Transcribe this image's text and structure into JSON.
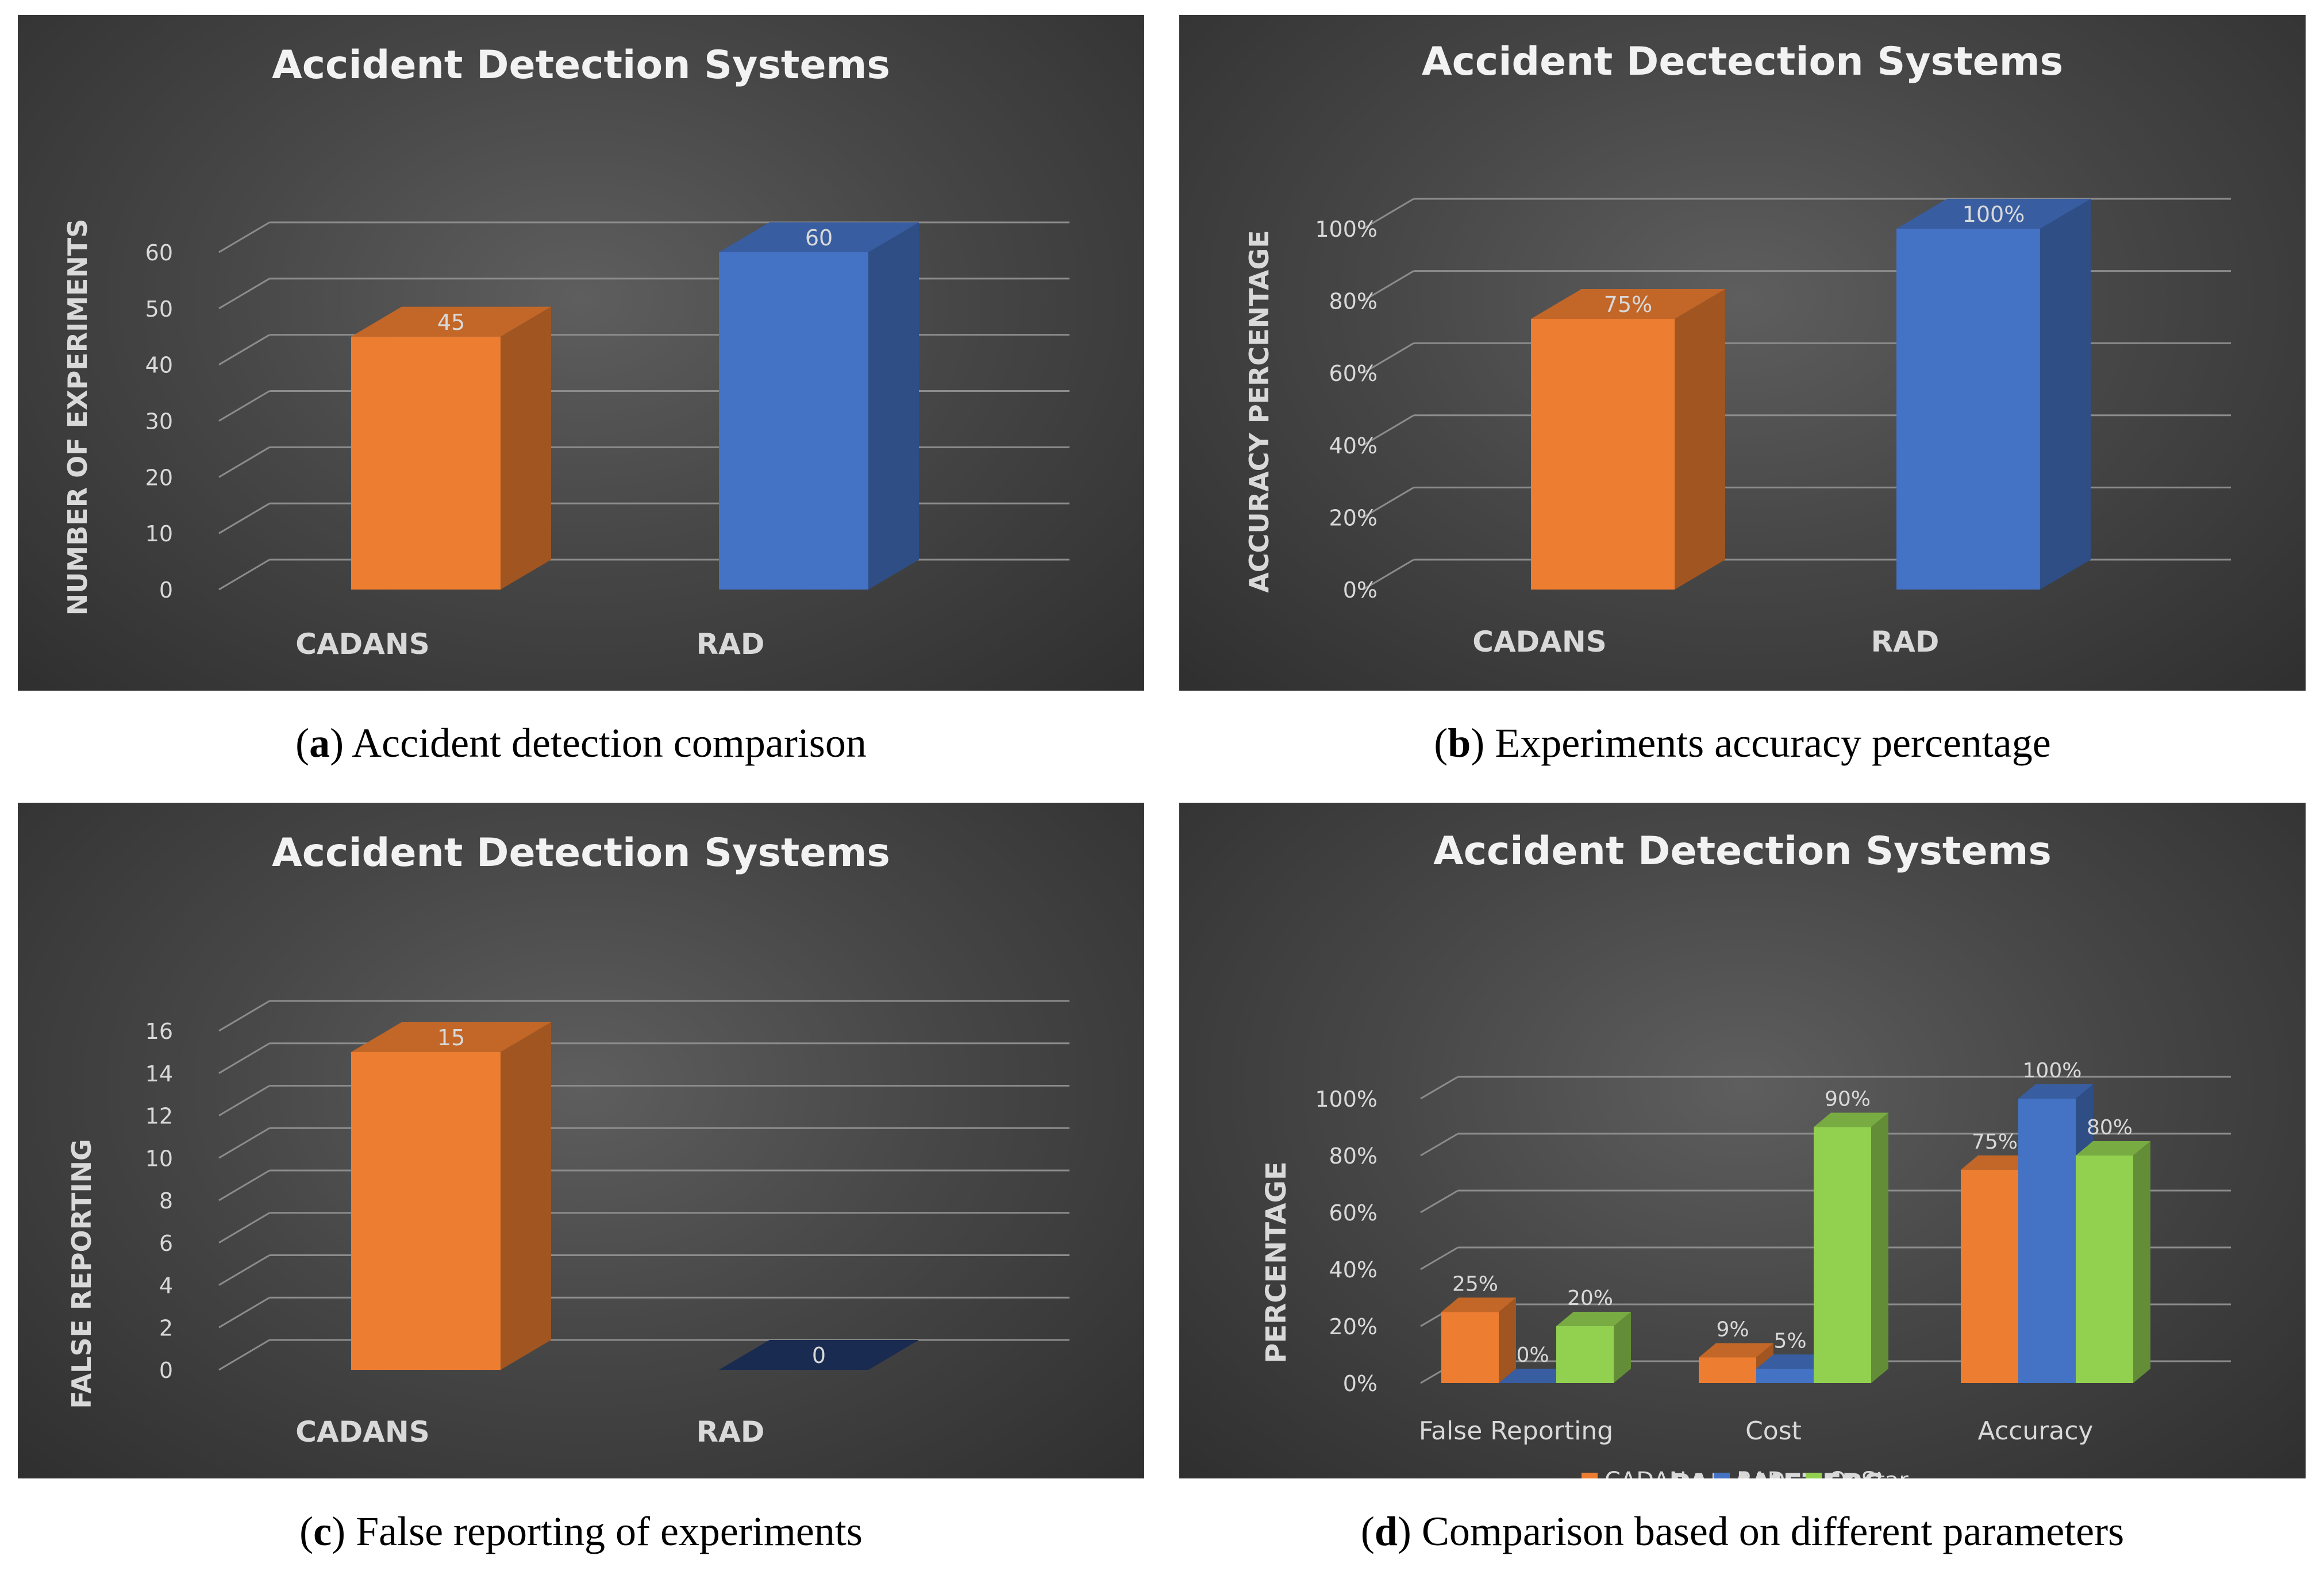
{
  "colors": {
    "cadans": "#ed7d31",
    "rad": "#4472c4",
    "onstar": "#92d050",
    "grid": "#8c8c8c",
    "text_light": "#d9d9d9",
    "title": "#f2f2f2"
  },
  "captions": [
    {
      "letter": "a",
      "text": " Accident detection comparison"
    },
    {
      "letter": "b",
      "text": " Experiments accuracy percentage"
    },
    {
      "letter": "c",
      "text": " False reporting of experiments"
    },
    {
      "letter": "d",
      "text": " Comparison based on different parameters"
    }
  ],
  "chart_data": [
    {
      "type": "bar",
      "title": "Accident Detection Systems",
      "xlabel": "",
      "ylabel": "NUMBER OF EXPERIMENTS",
      "categories": [
        "CADANS",
        "RAD"
      ],
      "values": [
        45,
        60
      ],
      "data_labels": [
        "45",
        "60"
      ],
      "bar_colors": [
        "#ed7d31",
        "#4472c4"
      ],
      "ylim": [
        0,
        60
      ],
      "yticks": [
        0,
        10,
        20,
        30,
        40,
        50,
        60
      ],
      "ytick_labels": [
        "0",
        "10",
        "20",
        "30",
        "40",
        "50",
        "60"
      ],
      "grid": true,
      "legend": null
    },
    {
      "type": "bar",
      "title": "Accident Dectection Systems",
      "xlabel": "",
      "ylabel": "ACCURACY PERCENTAGE",
      "categories": [
        "CADANS",
        "RAD"
      ],
      "values": [
        75,
        100
      ],
      "data_labels": [
        "75%",
        "100%"
      ],
      "bar_colors": [
        "#ed7d31",
        "#4472c4"
      ],
      "ylim": [
        0,
        100
      ],
      "yticks": [
        0,
        20,
        40,
        60,
        80,
        100
      ],
      "ytick_labels": [
        "0%",
        "20%",
        "40%",
        "60%",
        "80%",
        "100%"
      ],
      "grid": true,
      "legend": null
    },
    {
      "type": "bar",
      "title": "Accident Detection Systems",
      "xlabel": "",
      "ylabel": "FALSE REPORTING",
      "categories": [
        "CADANS",
        "RAD"
      ],
      "values": [
        15,
        0
      ],
      "data_labels": [
        "15",
        "0"
      ],
      "bar_colors": [
        "#ed7d31",
        "#4472c4"
      ],
      "ylim": [
        0,
        16
      ],
      "yticks": [
        0,
        2,
        4,
        6,
        8,
        10,
        12,
        14,
        16
      ],
      "ytick_labels": [
        "0",
        "2",
        "4",
        "6",
        "8",
        "10",
        "12",
        "14",
        "16"
      ],
      "grid": true,
      "legend": null
    },
    {
      "type": "bar",
      "title": "Accident Detection Systems",
      "xlabel": "PARAMETERS",
      "ylabel": "PERCENTAGE",
      "categories": [
        "False Reporting",
        "Cost",
        "Accuracy"
      ],
      "series": [
        {
          "name": "CADAN",
          "color": "#ed7d31",
          "values": [
            25,
            9,
            75
          ],
          "labels": [
            "25%",
            "9%",
            "75%"
          ]
        },
        {
          "name": "RAD",
          "color": "#4472c4",
          "values": [
            0,
            5,
            100
          ],
          "labels": [
            "0%",
            "5%",
            "100%"
          ]
        },
        {
          "name": "OnStar",
          "color": "#92d050",
          "values": [
            20,
            90,
            80
          ],
          "labels": [
            "20%",
            "90%",
            "80%"
          ]
        }
      ],
      "ylim": [
        0,
        100
      ],
      "yticks": [
        0,
        20,
        40,
        60,
        80,
        100
      ],
      "ytick_labels": [
        "0%",
        "20%",
        "40%",
        "60%",
        "80%",
        "100%"
      ],
      "grid": true,
      "legend": "bottom"
    }
  ]
}
